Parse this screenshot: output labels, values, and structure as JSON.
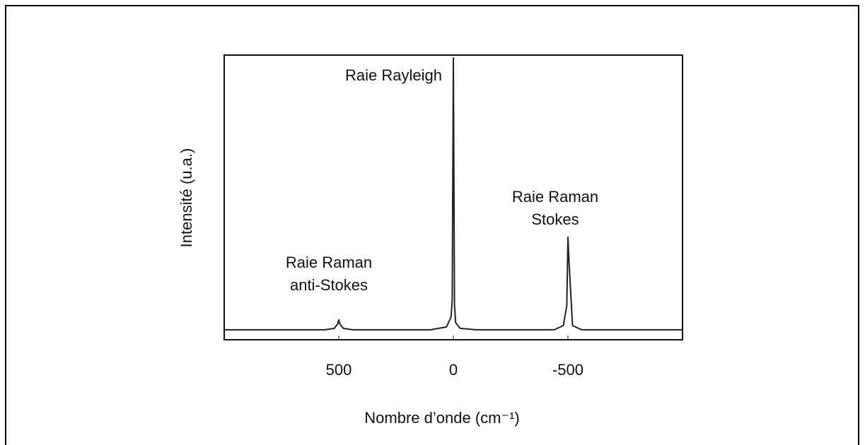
{
  "chart_data": {
    "type": "line",
    "xlabel": "Nombre d’onde (cm⁻¹)",
    "ylabel": "Intensité (u.a.)",
    "annotations": [
      [
        "Raie Rayleigh"
      ],
      [
        "Raie Raman",
        "anti-Stokes"
      ],
      [
        "Raie Raman",
        "Stokes"
      ]
    ],
    "xlim": [
      1000,
      -1000
    ],
    "xticks": [
      500,
      0,
      -500
    ],
    "ylim": [
      0,
      100
    ],
    "series": [
      {
        "color": "#222222",
        "x": [
          1000,
          700,
          560,
          520,
          505,
          500,
          495,
          480,
          440,
          300,
          100,
          30,
          10,
          5,
          0,
          -5,
          -10,
          -30,
          -100,
          -300,
          -440,
          -480,
          -495,
          -500,
          -505,
          -520,
          -560,
          -700,
          -1000
        ],
        "values": [
          3.5,
          3.5,
          3.5,
          4,
          5.5,
          7,
          5.5,
          4,
          3.5,
          3.5,
          3.5,
          4.5,
          8,
          14,
          99,
          12,
          6,
          4,
          3.5,
          3.5,
          3.5,
          5,
          12,
          36,
          27,
          5,
          3.5,
          3.5,
          3.5
        ]
      }
    ]
  }
}
